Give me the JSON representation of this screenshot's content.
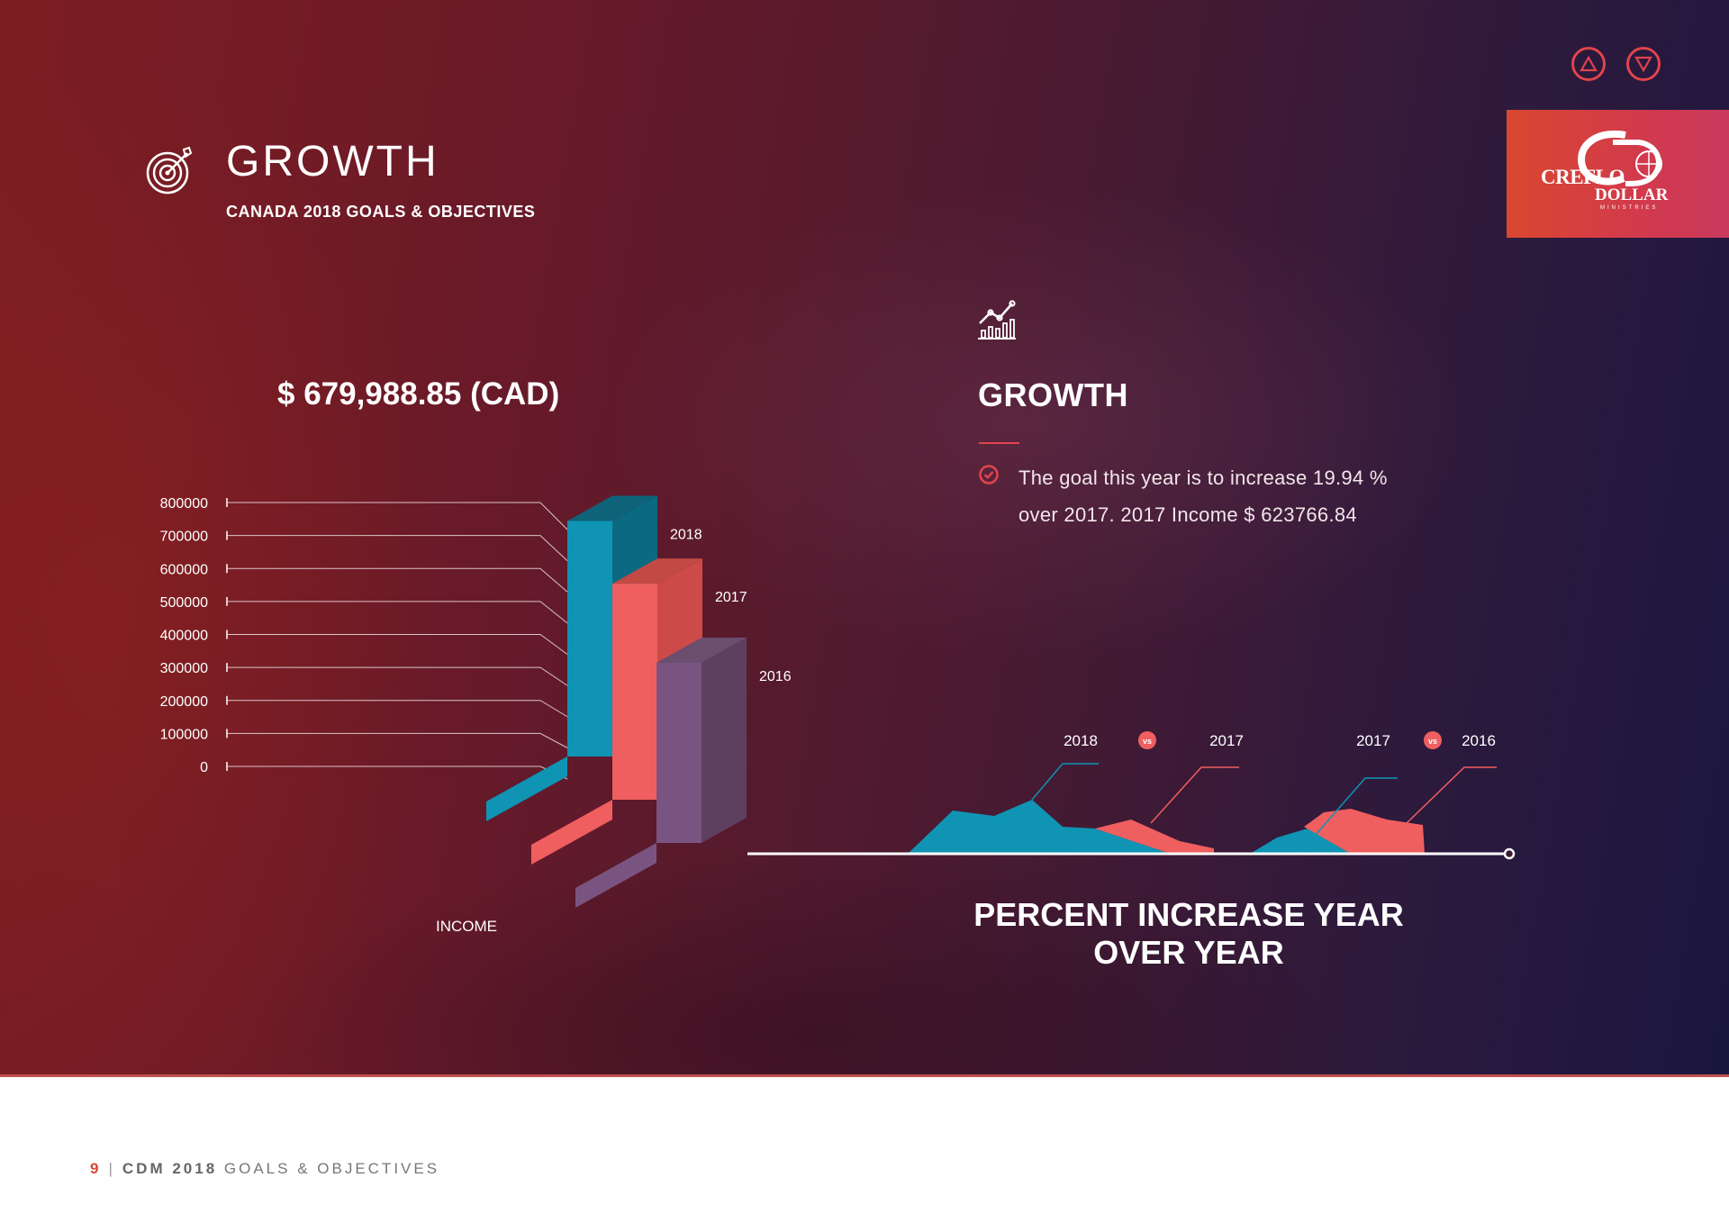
{
  "header": {
    "title": "GROWTH",
    "subtitle": "CANADA 2018 GOALS & OBJECTIVES",
    "icon": "target-icon"
  },
  "nav": {
    "up_icon": "triangle-up-icon",
    "down_icon": "triangle-down-icon"
  },
  "logo": {
    "line1": "CREFLO",
    "line2": "DOLLAR",
    "line3": "MINISTRIES"
  },
  "income_total": "$ 679,988.85 (CAD)",
  "growth_panel": {
    "icon": "growth-chart-icon",
    "heading": "GROWTH",
    "goal_text": "The goal this year is to increase 19.94 % over 2017. 2017 Income $ 623766.84"
  },
  "percent_title": "PERCENT INCREASE YEAR OVER YEAR",
  "footer": {
    "page": "9",
    "strong": "CDM 2018",
    "rest": "GOALS & OBJECTIVES"
  },
  "colors": {
    "teal": "#0f94b4",
    "coral": "#ef5f5f",
    "purple": "#6b4d6e",
    "accent": "#e0444c"
  },
  "chart_data": [
    {
      "type": "bar",
      "categories": [
        "2018",
        "2017",
        "2016"
      ],
      "values": [
        679988.85,
        623766.84,
        520000
      ],
      "ylim": [
        0,
        800000
      ],
      "yticks": [
        "800000",
        "700000",
        "600000",
        "500000",
        "400000",
        "300000",
        "200000",
        "100000",
        "0"
      ],
      "xlabel": "INCOME"
    },
    {
      "type": "area",
      "pairs": [
        {
          "a": "2018",
          "vs": "vs",
          "b": "2017"
        },
        {
          "a": "2017",
          "vs": "vs",
          "b": "2016"
        }
      ]
    }
  ]
}
